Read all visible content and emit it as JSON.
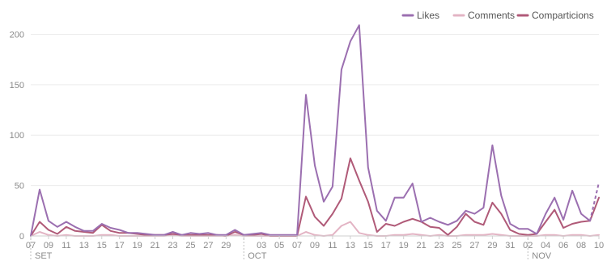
{
  "chart_data": {
    "type": "line",
    "title": "",
    "xlabel": "",
    "ylabel": "",
    "ylim": [
      0,
      210
    ],
    "y_ticks": [
      0,
      50,
      100,
      150,
      200
    ],
    "grid": true,
    "legend_position": "top-right",
    "x_tick_labels": [
      "07",
      "09",
      "11",
      "13",
      "15",
      "17",
      "19",
      "21",
      "23",
      "25",
      "27",
      "29",
      "",
      "03",
      "05",
      "07",
      "09",
      "11",
      "13",
      "15",
      "17",
      "19",
      "21",
      "23",
      "25",
      "27",
      "29",
      "31",
      "02",
      "04",
      "06",
      "08",
      "10"
    ],
    "month_labels": [
      "SET",
      "OCT",
      "NOV"
    ],
    "month_start_days": [
      0,
      24,
      56
    ],
    "series": [
      {
        "name": "Likes",
        "color": "#9b6fb0",
        "values": [
          0,
          46,
          15,
          9,
          14,
          9,
          5,
          5,
          12,
          8,
          6,
          3,
          3,
          2,
          1,
          1,
          4,
          1,
          3,
          2,
          3,
          1,
          1,
          6,
          1,
          2,
          3,
          1,
          1,
          1,
          1,
          140,
          70,
          34,
          49,
          165,
          193,
          209,
          68,
          25,
          15,
          38,
          38,
          52,
          14,
          18,
          14,
          11,
          15,
          25,
          22,
          28,
          90,
          40,
          12,
          7,
          7,
          2,
          22,
          38,
          16,
          45,
          22,
          15,
          53
        ],
        "dashed_from_index": 63
      },
      {
        "name": "Comments",
        "color": "#e3b4c4",
        "values": [
          0,
          4,
          1,
          0,
          1,
          0,
          0,
          0,
          1,
          1,
          0,
          0,
          0,
          0,
          0,
          0,
          1,
          0,
          0,
          0,
          0,
          0,
          0,
          1,
          0,
          0,
          0,
          0,
          0,
          0,
          0,
          4,
          1,
          0,
          1,
          10,
          14,
          3,
          1,
          0,
          0,
          1,
          1,
          2,
          1,
          0,
          1,
          0,
          0,
          1,
          1,
          1,
          2,
          1,
          0,
          0,
          0,
          0,
          1,
          1,
          0,
          1,
          1,
          0,
          1
        ]
      },
      {
        "name": "Comparticions",
        "color": "#b05a78",
        "values": [
          0,
          14,
          6,
          2,
          9,
          5,
          4,
          3,
          11,
          5,
          3,
          3,
          2,
          1,
          1,
          1,
          2,
          1,
          1,
          1,
          1,
          1,
          0,
          4,
          1,
          1,
          2,
          0,
          0,
          0,
          0,
          39,
          19,
          10,
          22,
          37,
          77,
          55,
          34,
          4,
          12,
          10,
          14,
          17,
          14,
          9,
          8,
          1,
          9,
          22,
          14,
          11,
          33,
          22,
          6,
          2,
          1,
          2,
          14,
          26,
          8,
          12,
          14,
          15,
          38
        ]
      }
    ]
  }
}
